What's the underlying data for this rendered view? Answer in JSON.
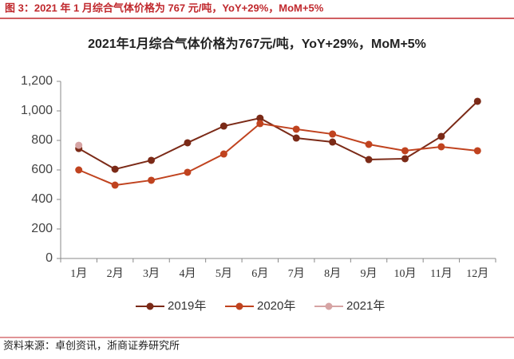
{
  "caption": "图 3：2021 年 1 月综合气体价格为 767 元/吨，YoY+29%，MoM+5%",
  "source": "资料来源：卓创资讯，浙商证券研究所",
  "chart_data": {
    "type": "line",
    "title": "2021年1月综合气体价格为767元/吨，YoY+29%，MoM+5%",
    "categories": [
      "1月",
      "2月",
      "3月",
      "4月",
      "5月",
      "6月",
      "7月",
      "8月",
      "9月",
      "10月",
      "11月",
      "12月"
    ],
    "series": [
      {
        "name": "2019年",
        "color": "#7b2a17",
        "values": [
          745,
          605,
          665,
          784,
          897,
          951,
          816,
          789,
          670,
          676,
          827,
          1065
        ]
      },
      {
        "name": "2020年",
        "color": "#c0431f",
        "values": [
          600,
          497,
          530,
          584,
          708,
          914,
          876,
          843,
          773,
          730,
          757,
          730
        ]
      },
      {
        "name": "2021年",
        "color": "#d6a4a4",
        "values": [
          767,
          null,
          null,
          null,
          null,
          null,
          null,
          null,
          null,
          null,
          null,
          null
        ]
      }
    ],
    "ylim": [
      0,
      1200
    ],
    "yticks": [
      0,
      200,
      400,
      600,
      800,
      {
        "value": 1000,
        "label": "1,000"
      },
      {
        "value": 1200,
        "label": "1,200"
      }
    ],
    "grid": false,
    "legend": "bottom"
  }
}
